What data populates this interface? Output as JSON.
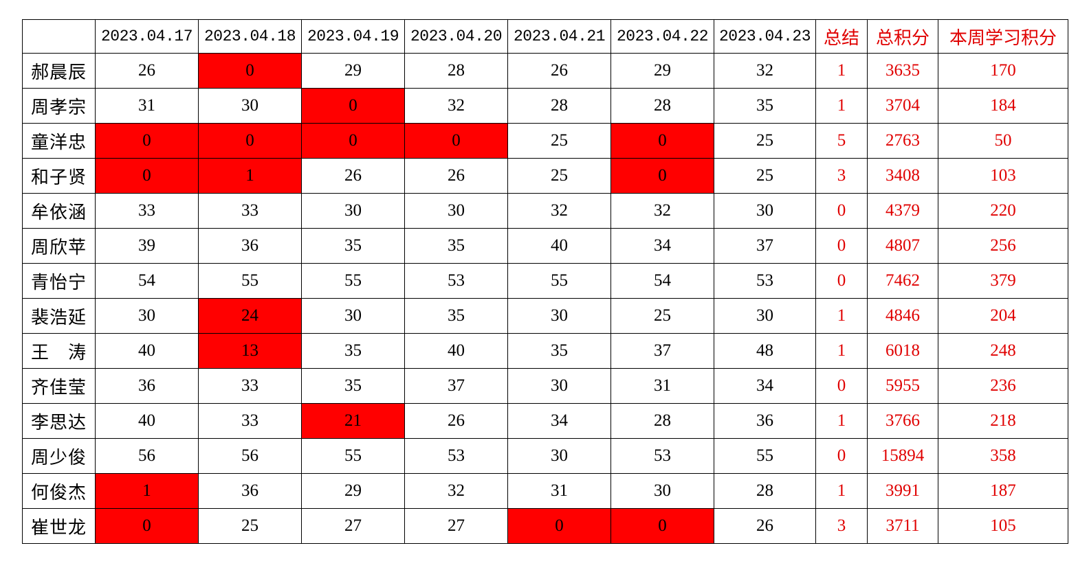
{
  "colors": {
    "highlight": "#ff0000",
    "summary_text": "#e00000"
  },
  "header": {
    "corner": "",
    "dates": [
      "2023.04.17",
      "2023.04.18",
      "2023.04.19",
      "2023.04.20",
      "2023.04.21",
      "2023.04.22",
      "2023.04.23"
    ],
    "summary": "总结",
    "total_points": "总积分",
    "week_points": "本周学习积分"
  },
  "rows": [
    {
      "name": "郝晨辰",
      "daily": [
        "26",
        "0",
        "29",
        "28",
        "26",
        "29",
        "32"
      ],
      "highlight": [
        false,
        true,
        false,
        false,
        false,
        false,
        false
      ],
      "summary": "1",
      "total": "3635",
      "week": "170"
    },
    {
      "name": "周孝宗",
      "daily": [
        "31",
        "30",
        "0",
        "32",
        "28",
        "28",
        "35"
      ],
      "highlight": [
        false,
        false,
        true,
        false,
        false,
        false,
        false
      ],
      "summary": "1",
      "total": "3704",
      "week": "184"
    },
    {
      "name": "童洋忠",
      "daily": [
        "0",
        "0",
        "0",
        "0",
        "25",
        "0",
        "25"
      ],
      "highlight": [
        true,
        true,
        true,
        true,
        false,
        true,
        false
      ],
      "summary": "5",
      "total": "2763",
      "week": "50"
    },
    {
      "name": "和子贤",
      "daily": [
        "0",
        "1",
        "26",
        "26",
        "25",
        "0",
        "25"
      ],
      "highlight": [
        true,
        true,
        false,
        false,
        false,
        true,
        false
      ],
      "summary": "3",
      "total": "3408",
      "week": "103"
    },
    {
      "name": "牟依涵",
      "daily": [
        "33",
        "33",
        "30",
        "30",
        "32",
        "32",
        "30"
      ],
      "highlight": [
        false,
        false,
        false,
        false,
        false,
        false,
        false
      ],
      "summary": "0",
      "total": "4379",
      "week": "220"
    },
    {
      "name": "周欣苹",
      "daily": [
        "39",
        "36",
        "35",
        "35",
        "40",
        "34",
        "37"
      ],
      "highlight": [
        false,
        false,
        false,
        false,
        false,
        false,
        false
      ],
      "summary": "0",
      "total": "4807",
      "week": "256"
    },
    {
      "name": "青怡宁",
      "daily": [
        "54",
        "55",
        "55",
        "53",
        "55",
        "54",
        "53"
      ],
      "highlight": [
        false,
        false,
        false,
        false,
        false,
        false,
        false
      ],
      "summary": "0",
      "total": "7462",
      "week": "379"
    },
    {
      "name": "裴浩延",
      "daily": [
        "30",
        "24",
        "30",
        "35",
        "30",
        "25",
        "30"
      ],
      "highlight": [
        false,
        true,
        false,
        false,
        false,
        false,
        false
      ],
      "summary": "1",
      "total": "4846",
      "week": "204"
    },
    {
      "name": "王　涛",
      "daily": [
        "40",
        "13",
        "35",
        "40",
        "35",
        "37",
        "48"
      ],
      "highlight": [
        false,
        true,
        false,
        false,
        false,
        false,
        false
      ],
      "summary": "1",
      "total": "6018",
      "week": "248"
    },
    {
      "name": "齐佳莹",
      "daily": [
        "36",
        "33",
        "35",
        "37",
        "30",
        "31",
        "34"
      ],
      "highlight": [
        false,
        false,
        false,
        false,
        false,
        false,
        false
      ],
      "summary": "0",
      "total": "5955",
      "week": "236"
    },
    {
      "name": "李思达",
      "daily": [
        "40",
        "33",
        "21",
        "26",
        "34",
        "28",
        "36"
      ],
      "highlight": [
        false,
        false,
        true,
        false,
        false,
        false,
        false
      ],
      "summary": "1",
      "total": "3766",
      "week": "218"
    },
    {
      "name": "周少俊",
      "daily": [
        "56",
        "56",
        "55",
        "53",
        "30",
        "53",
        "55"
      ],
      "highlight": [
        false,
        false,
        false,
        false,
        false,
        false,
        false
      ],
      "summary": "0",
      "total": "15894",
      "week": "358"
    },
    {
      "name": "何俊杰",
      "daily": [
        "1",
        "36",
        "29",
        "32",
        "31",
        "30",
        "28"
      ],
      "highlight": [
        true,
        false,
        false,
        false,
        false,
        false,
        false
      ],
      "summary": "1",
      "total": "3991",
      "week": "187"
    },
    {
      "name": "崔世龙",
      "daily": [
        "0",
        "25",
        "27",
        "27",
        "0",
        "0",
        "26"
      ],
      "highlight": [
        true,
        false,
        false,
        false,
        true,
        true,
        false
      ],
      "summary": "3",
      "total": "3711",
      "week": "105"
    }
  ]
}
